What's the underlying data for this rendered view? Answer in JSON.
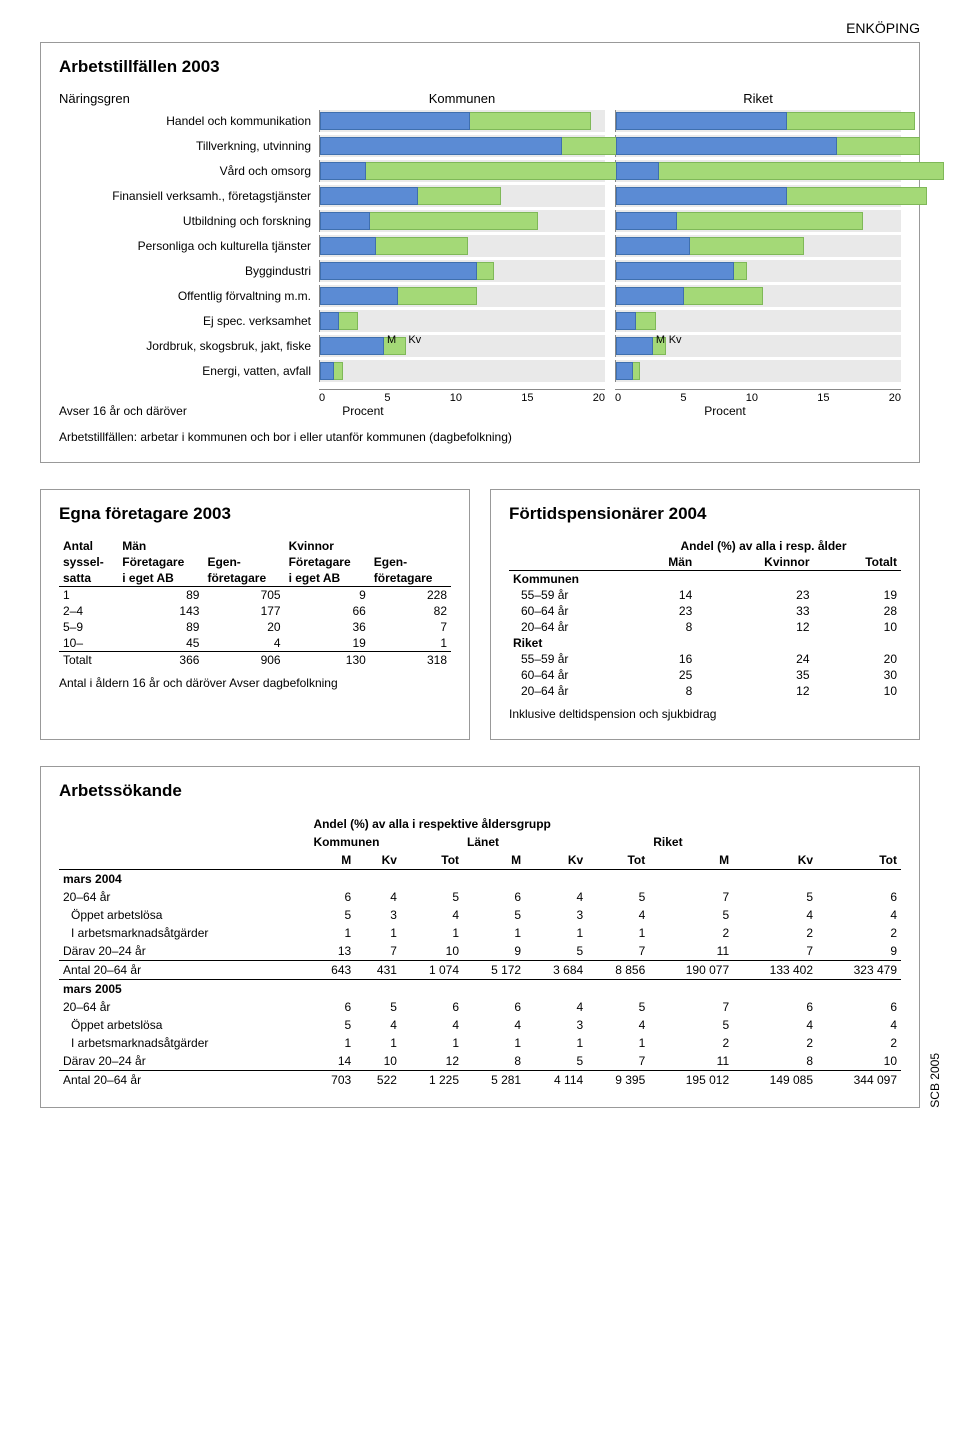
{
  "region_label": "ENKÖPING",
  "side_label": "SCB 2005",
  "chart_panel": {
    "title": "Arbetstillfällen 2003",
    "cat_col_header": "Näringsgren",
    "col1": "Kommunen",
    "col2": "Riket",
    "categories": [
      "Handel och kommunikation",
      "Tillverkning, utvinning",
      "Vård och omsorg",
      "Finansiell verksamh., företagstjänster",
      "Utbildning och forskning",
      "Personliga och kulturella tjänster",
      "Byggindustri",
      "Offentlig förvaltning m.m.",
      "Ej spec. verksamhet",
      "Jordbruk, skogsbruk, jakt, fiske",
      "Energi, vatten, avfall"
    ],
    "kommunen_m": [
      10.5,
      17.0,
      3.2,
      6.9,
      3.5,
      3.9,
      11.0,
      5.5,
      1.3,
      4.5,
      1.0
    ],
    "kommunen_kv": [
      8.5,
      6.5,
      21.0,
      5.8,
      11.8,
      6.5,
      1.2,
      5.5,
      1.4,
      1.5,
      0.6
    ],
    "riket_m": [
      12.0,
      15.5,
      3.0,
      12.0,
      4.3,
      5.2,
      8.3,
      4.8,
      1.4,
      2.6,
      1.2
    ],
    "riket_kv": [
      9.0,
      5.8,
      20.0,
      9.8,
      13.0,
      8.0,
      0.9,
      5.5,
      1.4,
      0.9,
      0.5
    ],
    "xmax": 20,
    "ticks": [
      0,
      5,
      10,
      15,
      20
    ],
    "axis_label": "Procent",
    "mkv_row_index": 9,
    "m_label": "M",
    "kv_label": "Kv",
    "footnote_left": "Avser 16 år och däröver",
    "sub_footnote": "Arbetstillfällen: arbetar i kommunen och bor i eller utanför kommunen (dagbefolkning)",
    "colors": {
      "m": "#5b8bd4",
      "kv": "#a4d977",
      "grid": "#e9e9e9"
    }
  },
  "egna": {
    "title": "Egna företagare 2003",
    "h_antal": "Antal",
    "h_syssel": "syssel-",
    "h_satta": "satta",
    "h_man": "Män",
    "h_kv": "Kvinnor",
    "h_foretagare": "Företagare",
    "h_egen": "Egen-",
    "h_ieget": "i eget AB",
    "h_foretag": "företagare",
    "rows": [
      {
        "r": "1",
        "v": [
          89,
          705,
          9,
          228
        ]
      },
      {
        "r": "2–4",
        "v": [
          143,
          177,
          66,
          82
        ]
      },
      {
        "r": "5–9",
        "v": [
          89,
          20,
          36,
          7
        ]
      },
      {
        "r": "10–",
        "v": [
          45,
          4,
          19,
          1
        ]
      }
    ],
    "tot_label": "Totalt",
    "tot": [
      366,
      906,
      130,
      318
    ],
    "note": "Antal i åldern 16 år och däröver        Avser dagbefolkning"
  },
  "fortid": {
    "title": "Förtidspensionärer 2004",
    "subhead": "Andel (%) av alla i resp. ålder",
    "h_man": "Män",
    "h_kv": "Kvinnor",
    "h_tot": "Totalt",
    "g1": "Kommunen",
    "g2": "Riket",
    "rows_k": [
      {
        "r": "55–59 år",
        "v": [
          14,
          23,
          19
        ]
      },
      {
        "r": "60–64 år",
        "v": [
          23,
          33,
          28
        ]
      },
      {
        "r": "20–64 år",
        "v": [
          8,
          12,
          10
        ]
      }
    ],
    "rows_r": [
      {
        "r": "55–59 år",
        "v": [
          16,
          24,
          20
        ]
      },
      {
        "r": "60–64 år",
        "v": [
          25,
          35,
          30
        ]
      },
      {
        "r": "20–64 år",
        "v": [
          8,
          12,
          10
        ]
      }
    ],
    "note": "Inklusive deltidspension och sjukbidrag"
  },
  "arbetssokande": {
    "title": "Arbetssökande",
    "subhead": "Andel (%) av alla i respektive åldersgrupp",
    "g_k": "Kommunen",
    "g_l": "Länet",
    "g_r": "Riket",
    "h_m": "M",
    "h_kv": "Kv",
    "h_tot": "Tot",
    "grp2004": "mars 2004",
    "grp2005": "mars 2005",
    "rows2004": [
      {
        "r": "20–64 år",
        "v": [
          6,
          4,
          5,
          6,
          4,
          5,
          7,
          5,
          6
        ]
      },
      {
        "r": "Öppet arbetslösa",
        "indent": 1,
        "v": [
          5,
          3,
          4,
          5,
          3,
          4,
          5,
          4,
          4
        ]
      },
      {
        "r": "I arbetsmarknadsåtgärder",
        "indent": 1,
        "v": [
          1,
          1,
          1,
          1,
          1,
          1,
          2,
          2,
          2
        ]
      },
      {
        "r": "Därav 20–24 år",
        "v": [
          13,
          7,
          10,
          9,
          5,
          7,
          11,
          7,
          9
        ]
      }
    ],
    "antal2004": {
      "r": "Antal 20–64 år",
      "v": [
        643,
        431,
        "1 074",
        "5 172",
        "3 684",
        "8 856",
        "190 077",
        "133 402",
        "323 479"
      ]
    },
    "rows2005": [
      {
        "r": "20–64 år",
        "v": [
          6,
          5,
          6,
          6,
          4,
          5,
          7,
          6,
          6
        ]
      },
      {
        "r": "Öppet arbetslösa",
        "indent": 1,
        "v": [
          5,
          4,
          4,
          4,
          3,
          4,
          5,
          4,
          4
        ]
      },
      {
        "r": "I arbetsmarknadsåtgärder",
        "indent": 1,
        "v": [
          1,
          1,
          1,
          1,
          1,
          1,
          2,
          2,
          2
        ]
      },
      {
        "r": "Därav 20–24 år",
        "v": [
          14,
          10,
          12,
          8,
          5,
          7,
          11,
          8,
          10
        ]
      }
    ],
    "antal2005": {
      "r": "Antal 20–64 år",
      "v": [
        703,
        522,
        "1 225",
        "5 281",
        "4 114",
        "9 395",
        "195 012",
        "149 085",
        "344 097"
      ]
    }
  }
}
